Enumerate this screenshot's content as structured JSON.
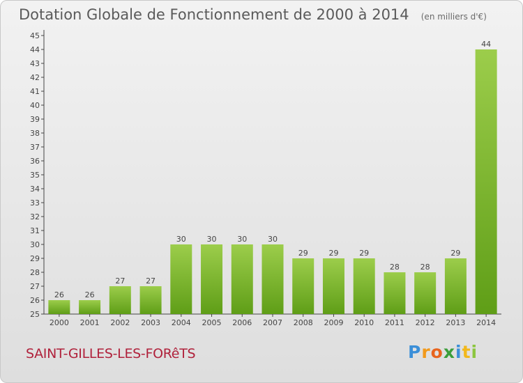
{
  "header": {
    "title": "Dotation Globale de Fonctionnement de 2000 à 2014",
    "unit": "(en milliers d'€)"
  },
  "footer": {
    "place": "SAINT-GILLES-LES-FORêTS",
    "logo_letters": [
      {
        "ch": "P",
        "color": "#3b8fd8"
      },
      {
        "ch": "r",
        "color": "#f29a1c"
      },
      {
        "ch": "o",
        "color": "#e8641e"
      },
      {
        "ch": "x",
        "color": "#3b9e3b"
      },
      {
        "ch": "i",
        "color": "#3b8fd8"
      },
      {
        "ch": "t",
        "color": "#f2b81c"
      },
      {
        "ch": "i",
        "color": "#8cc63f"
      }
    ]
  },
  "chart_data": {
    "type": "bar",
    "title": "Dotation Globale de Fonctionnement de 2000 à 2014",
    "subtitle": "(en milliers d'€)",
    "xlabel": "",
    "ylabel": "",
    "categories": [
      "2000",
      "2001",
      "2002",
      "2003",
      "2004",
      "2005",
      "2006",
      "2007",
      "2008",
      "2009",
      "2010",
      "2011",
      "2012",
      "2013",
      "2014"
    ],
    "values": [
      26,
      26,
      27,
      27,
      30,
      30,
      30,
      30,
      29,
      29,
      29,
      28,
      28,
      29,
      44
    ],
    "ylim": [
      25,
      45
    ],
    "yticks": [
      25,
      26,
      27,
      28,
      29,
      30,
      31,
      32,
      33,
      34,
      35,
      36,
      37,
      38,
      39,
      40,
      41,
      42,
      43,
      44,
      45
    ],
    "grid": false,
    "bar_color_top": "#9ccd4b",
    "bar_color_bottom": "#5f9e17"
  }
}
